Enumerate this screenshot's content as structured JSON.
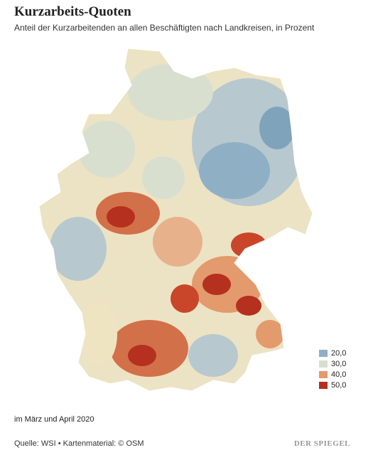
{
  "header": {
    "title": "Kurzarbeits-Quoten",
    "subtitle": "Anteil der Kurzarbeitenden an allen Beschäftigten nach Landkreisen, in Prozent"
  },
  "legend": [
    {
      "label": "20,0",
      "color": "#8fb0c4"
    },
    {
      "label": "30,0",
      "color": "#d8dfcf"
    },
    {
      "label": "40,0",
      "color": "#e39a6c"
    },
    {
      "label": "50,0",
      "color": "#b5301e"
    }
  ],
  "note": "im März und April 2020",
  "source": "Quelle: WSI • Kartenmaterial: © OSM",
  "brand": "DER SPIEGEL"
}
